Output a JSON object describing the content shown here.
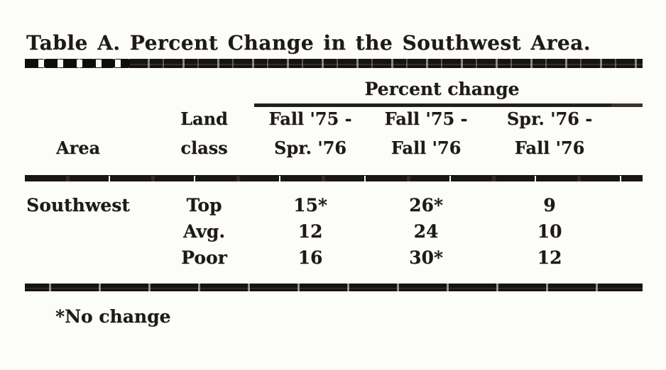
{
  "colors": {
    "ink": "#1e1a15",
    "paper": "#fcfcf9"
  },
  "table": {
    "title": "Table A. Percent Change in the Southwest Area.",
    "spanner_label": "Percent change",
    "header": {
      "area": "Area",
      "land_line1": "Land",
      "land_line2": "class",
      "c3_line1": "Fall '75 -",
      "c3_line2": "Spr. '76",
      "c4_line1": "Fall '75 -",
      "c4_line2": "Fall '76",
      "c5_line1": "Spr. '76 -",
      "c5_line2": "Fall '76"
    },
    "rows": [
      {
        "area": "Southwest",
        "land_class": "Top",
        "fall75_spr76": "15*",
        "fall75_fall76": "26*",
        "spr76_fall76": "9"
      },
      {
        "area": "",
        "land_class": "Avg.",
        "fall75_spr76": "12",
        "fall75_fall76": "24",
        "spr76_fall76": "10"
      },
      {
        "area": "",
        "land_class": "Poor",
        "fall75_spr76": "16",
        "fall75_fall76": "30*",
        "spr76_fall76": "12"
      }
    ],
    "footnote": "*No change"
  }
}
